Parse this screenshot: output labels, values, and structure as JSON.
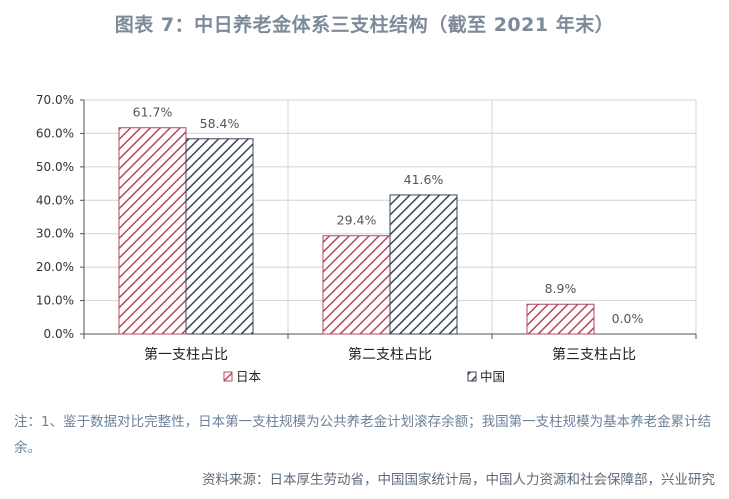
{
  "title": "图表 7：中日养老金体系三支柱结构（截至 2021 年末）",
  "note": "注：1、鉴于数据对比完整性，日本第一支柱规模为公共养老金计划滚存余额；我国第一支柱规模为基本养老金累计结余。",
  "source": "资料来源：日本厚生劳动省，中国国家统计局，中国人力资源和社会保障部，兴业研究",
  "colors": {
    "japan": "#b5475e",
    "china": "#3b4656"
  },
  "chart_data": {
    "type": "bar",
    "categories": [
      "第一支柱占比",
      "第二支柱占比",
      "第三支柱占比"
    ],
    "series": [
      {
        "name": "日本",
        "values": [
          61.7,
          29.4,
          8.9
        ],
        "labels": [
          "61.7%",
          "29.4%",
          "8.9%"
        ]
      },
      {
        "name": "中国",
        "values": [
          58.4,
          41.6,
          0.0
        ],
        "labels": [
          "58.4%",
          "41.6%",
          "0.0%"
        ]
      }
    ],
    "yticks": [
      "0.0%",
      "10.0%",
      "20.0%",
      "30.0%",
      "40.0%",
      "50.0%",
      "60.0%",
      "70.0%"
    ],
    "ylim": [
      0,
      70
    ],
    "grid": true,
    "legend_position": "bottom"
  }
}
